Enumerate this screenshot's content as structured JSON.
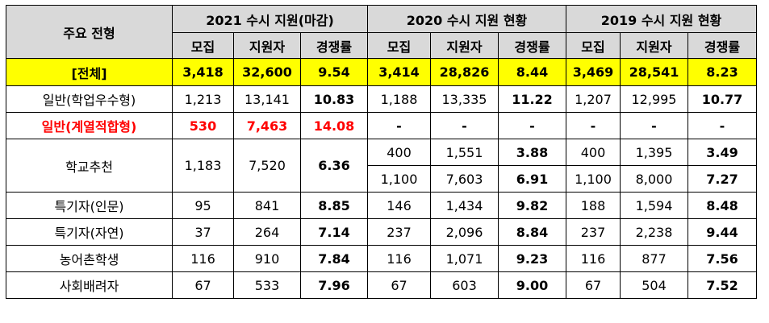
{
  "headers": {
    "type_col": "주요 전형",
    "groups": [
      "2021 수시 지원(마감)",
      "2020 수시 지원 현황",
      "2019 수시 지원 현황"
    ],
    "sub": [
      "모집",
      "지원자",
      "경쟁률"
    ]
  },
  "rows": {
    "total": {
      "label": "[전체]",
      "y2021": [
        "3,418",
        "32,600",
        "9.54"
      ],
      "y2020": [
        "3,414",
        "28,826",
        "8.44"
      ],
      "y2019": [
        "3,469",
        "28,541",
        "8.23"
      ]
    },
    "hakeop": {
      "label": "일반(학업우수형)",
      "y2021": [
        "1,213",
        "13,141",
        "10.83"
      ],
      "y2020": [
        "1,188",
        "13,335",
        "11.22"
      ],
      "y2019": [
        "1,207",
        "12,995",
        "10.77"
      ]
    },
    "gyeyeol": {
      "label": "일반(계열적합형)",
      "y2021": [
        "530",
        "7,463",
        "14.08"
      ],
      "y2020": [
        "-",
        "-",
        "-"
      ],
      "y2019": [
        "-",
        "-",
        "-"
      ]
    },
    "school": {
      "label": "학교추천",
      "y2021": [
        "1,183",
        "7,520",
        "6.36"
      ],
      "y2020a": [
        "400",
        "1,551",
        "3.88"
      ],
      "y2019a": [
        "400",
        "1,395",
        "3.49"
      ],
      "y2020b": [
        "1,100",
        "7,603",
        "6.91"
      ],
      "y2019b": [
        "1,100",
        "8,000",
        "7.27"
      ]
    },
    "inmun": {
      "label": "특기자(인문)",
      "y2021": [
        "95",
        "841",
        "8.85"
      ],
      "y2020": [
        "146",
        "1,434",
        "9.82"
      ],
      "y2019": [
        "188",
        "1,594",
        "8.48"
      ]
    },
    "jayeon": {
      "label": "특기자(자연)",
      "y2021": [
        "37",
        "264",
        "7.14"
      ],
      "y2020": [
        "237",
        "2,096",
        "8.84"
      ],
      "y2019": [
        "237",
        "2,238",
        "9.44"
      ]
    },
    "nongeo": {
      "label": "농어촌학생",
      "y2021": [
        "116",
        "910",
        "7.84"
      ],
      "y2020": [
        "116",
        "1,071",
        "9.23"
      ],
      "y2019": [
        "116",
        "877",
        "7.56"
      ]
    },
    "social": {
      "label": "사회배려자",
      "y2021": [
        "67",
        "533",
        "7.96"
      ],
      "y2020": [
        "67",
        "603",
        "9.00"
      ],
      "y2019": [
        "67",
        "504",
        "7.52"
      ]
    }
  },
  "colors": {
    "header_bg": "#d9d9d9",
    "total_bg": "#ffff00",
    "highlight_text": "#ff0000"
  }
}
